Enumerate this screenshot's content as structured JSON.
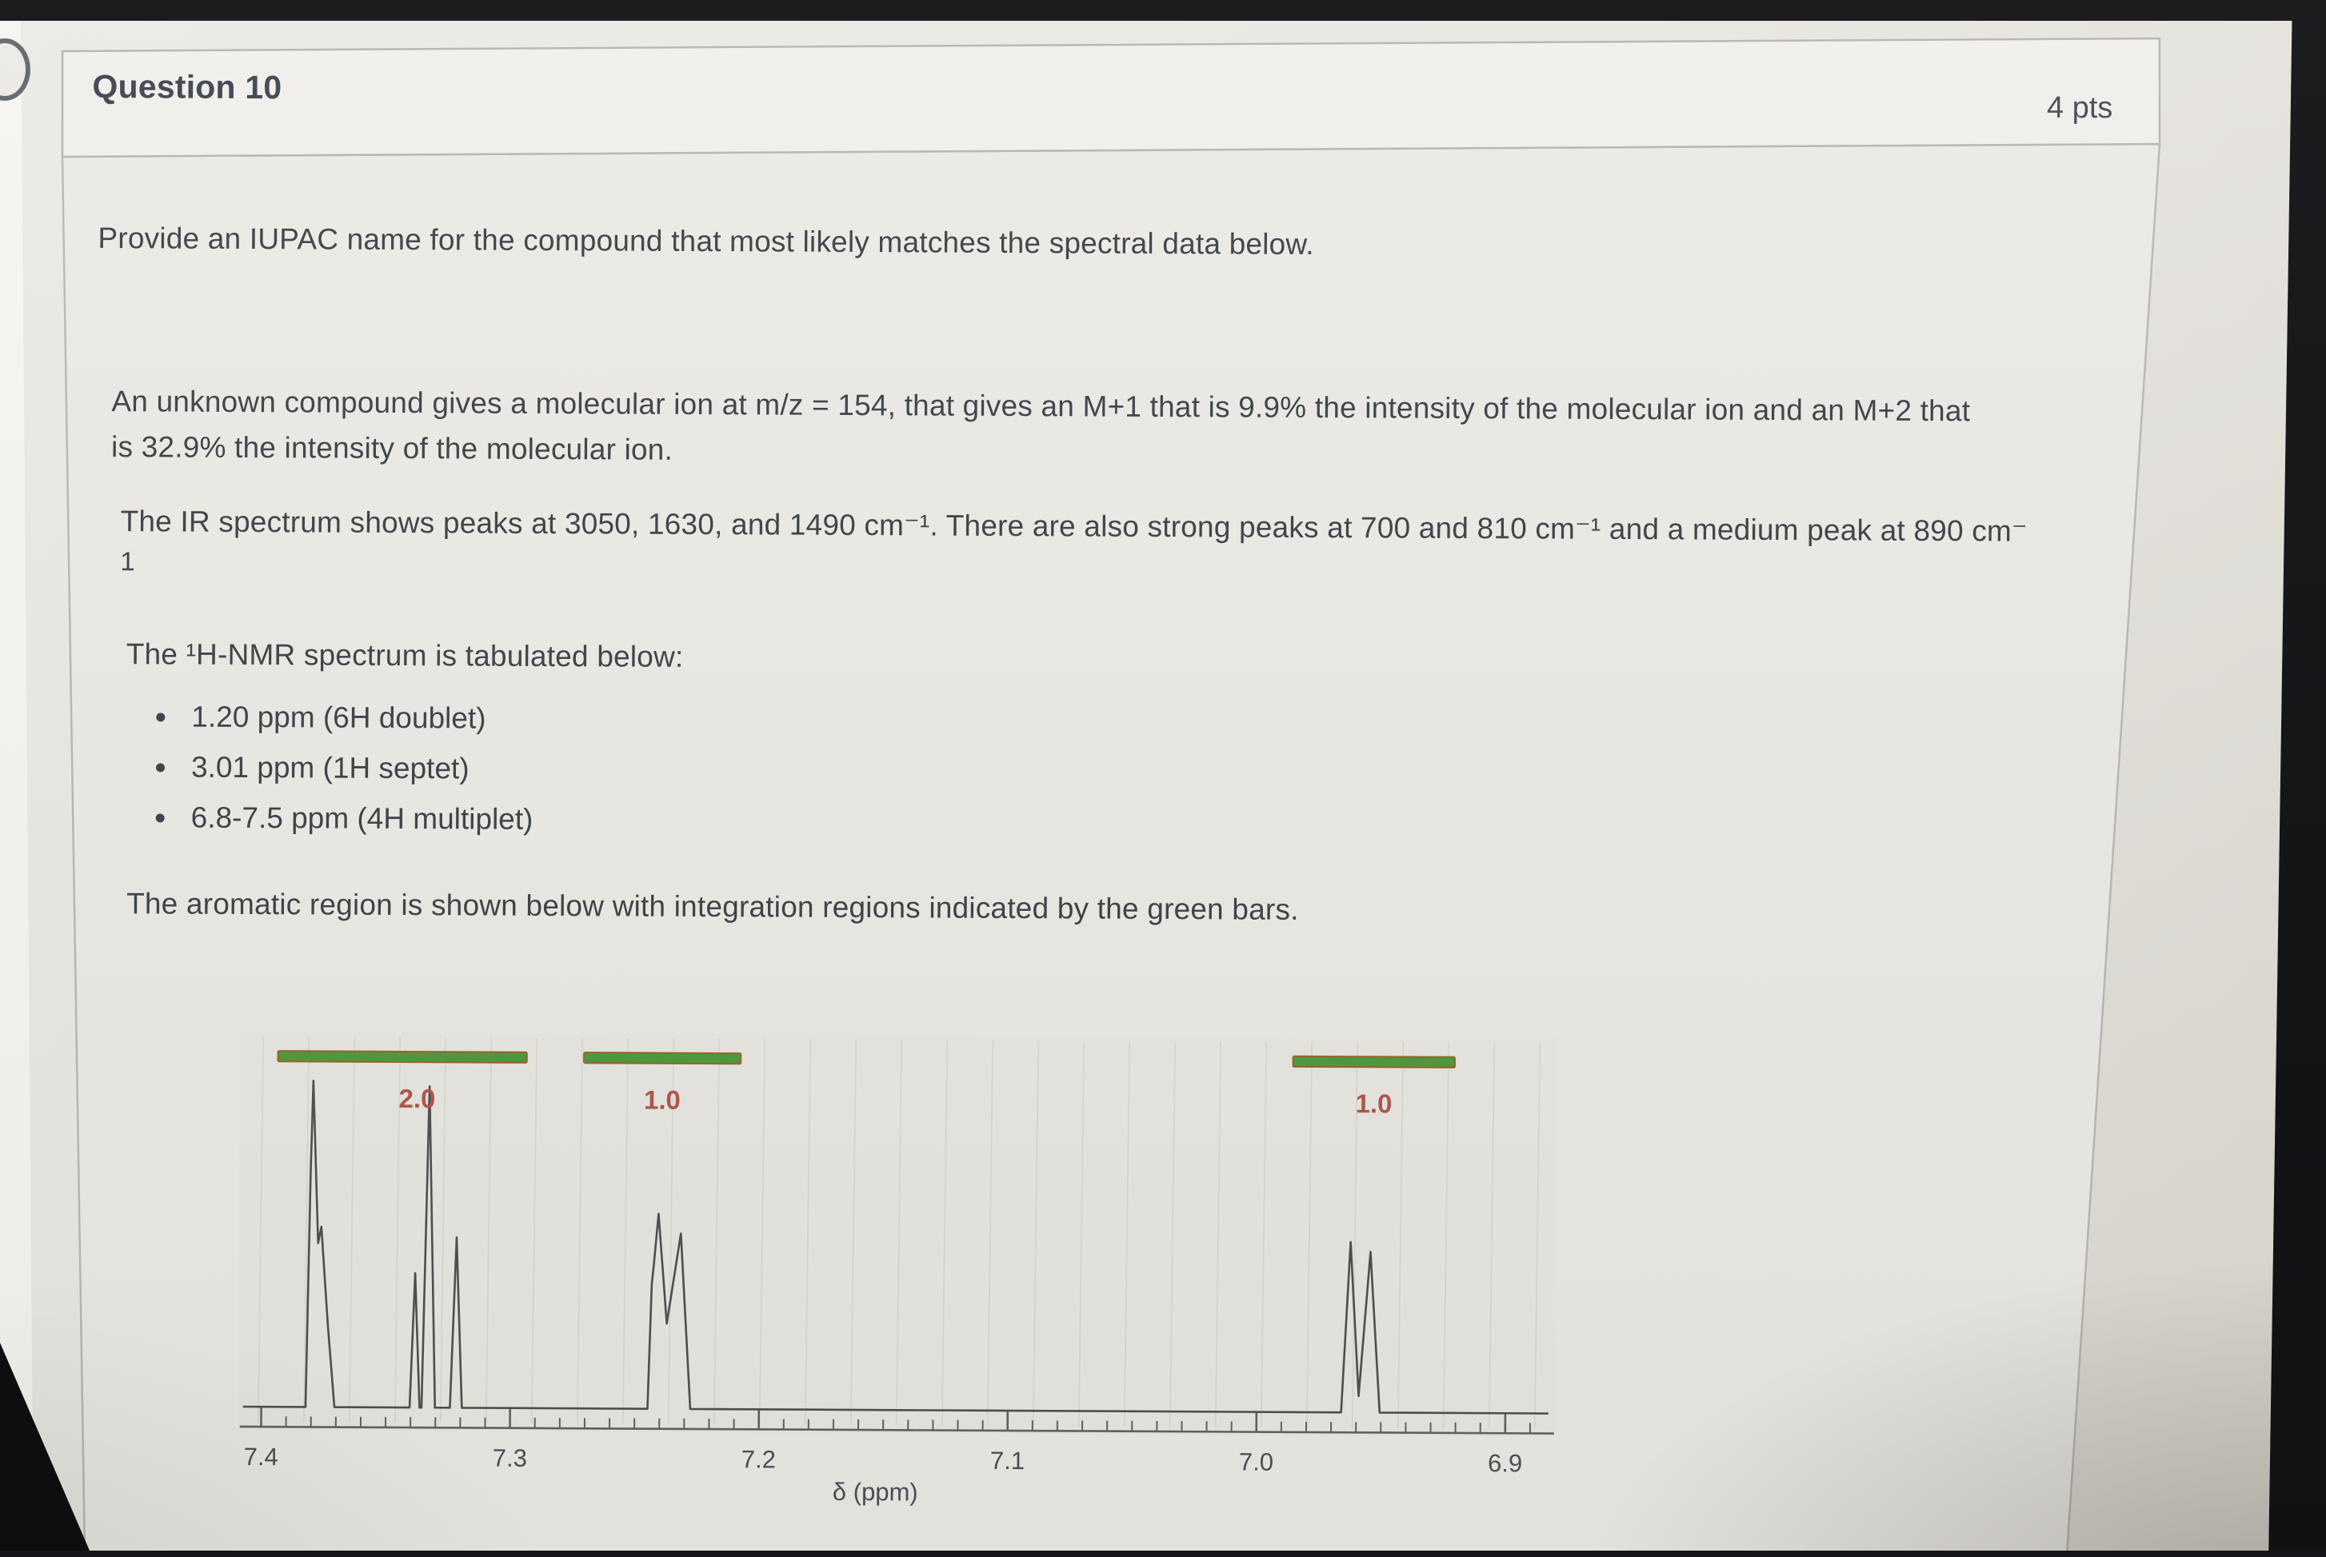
{
  "header": {
    "title": "Question 10",
    "points": "4 pts"
  },
  "question": {
    "prompt": "Provide an IUPAC name for the compound that most likely matches the spectral data below.",
    "mass_spec_line1": "An unknown compound gives a molecular ion at m/z = 154, that gives an M+1 that is 9.9% the intensity of the molecular ion and an M+2 that",
    "mass_spec_line2": "is 32.9% the intensity of the molecular ion.",
    "ir_line1": "The IR spectrum shows peaks at 3050, 1630, and 1490 cm⁻¹. There are also strong peaks at 700 and 810 cm⁻¹ and a medium peak at 890 cm⁻",
    "ir_line2": "1",
    "nmr_heading": "The ¹H-NMR spectrum is tabulated below:",
    "nmr_peaks": [
      "1.20 ppm (6H doublet)",
      "3.01 ppm (1H septet)",
      "6.8-7.5 ppm (4H multiplet)"
    ],
    "aromatic_note": "The aromatic region is shown below with integration regions indicated by the green bars."
  },
  "chart_data": {
    "type": "line",
    "title": "Aromatic region of the 1H-NMR spectrum",
    "xlabel": "δ (ppm)",
    "x_min": 6.883,
    "x_max": 7.407,
    "x_reversed": true,
    "grid": true,
    "major_ticks": [
      {
        "value": 7.4,
        "label": "7.4"
      },
      {
        "value": 7.3,
        "label": "7.3"
      },
      {
        "value": 7.2,
        "label": "7.2"
      },
      {
        "value": 7.1,
        "label": "7.1"
      },
      {
        "value": 7.0,
        "label": "7.0"
      },
      {
        "value": 6.9,
        "label": "6.9"
      }
    ],
    "minor_tick_step": 0.01,
    "integration_bars": [
      {
        "from": 7.394,
        "to": 7.294,
        "label": "2.0",
        "label_at": 7.338
      },
      {
        "from": 7.271,
        "to": 7.208,
        "label": "1.0",
        "label_at": 7.2395
      },
      {
        "from": 6.986,
        "to": 6.921,
        "label": "1.0",
        "label_at": 6.9535
      }
    ],
    "peak_clusters": [
      {
        "name": "peak-7.38-doublet",
        "points": [
          [
            7.3822,
            0
          ],
          [
            7.3806,
            0.72
          ],
          [
            7.3797,
            0.995
          ],
          [
            7.3775,
            0.5
          ],
          [
            7.3762,
            0.55
          ],
          [
            7.3734,
            0.25
          ],
          [
            7.3706,
            0
          ]
        ]
      },
      {
        "name": "peak-7.34",
        "points": [
          [
            7.3404,
            0
          ],
          [
            7.3384,
            0.41
          ],
          [
            7.3364,
            0
          ]
        ]
      },
      {
        "name": "peak-7.33",
        "points": [
          [
            7.3356,
            0
          ],
          [
            7.333,
            0.98
          ],
          [
            7.3302,
            0
          ]
        ]
      },
      {
        "name": "peak-7.32",
        "points": [
          [
            7.3242,
            0
          ],
          [
            7.3218,
            0.52
          ],
          [
            7.3194,
            0
          ]
        ]
      },
      {
        "name": "peak-7.24-multiplet",
        "points": [
          [
            7.2448,
            0
          ],
          [
            7.2433,
            0.38
          ],
          [
            7.2425,
            0.44
          ],
          [
            7.2407,
            0.595
          ],
          [
            7.2372,
            0.26
          ],
          [
            7.2317,
            0.535
          ],
          [
            7.2276,
            0
          ]
        ]
      },
      {
        "name": "peak-6.96-doublet",
        "points": [
          [
            6.966,
            0
          ],
          [
            6.9625,
            0.52
          ],
          [
            6.959,
            0.05
          ],
          [
            6.9545,
            0.49
          ],
          [
            6.9505,
            0
          ]
        ]
      }
    ],
    "colors": {
      "bar_fill": "#4c9b3c",
      "bar_edge": "#99652a",
      "bar_label": "#b2564a",
      "trace": "#4f4f4f",
      "axis": "#63625e",
      "grid": "#d2cfc8",
      "tick_label": "#4b5057",
      "panel": "#e9e7e1"
    }
  }
}
